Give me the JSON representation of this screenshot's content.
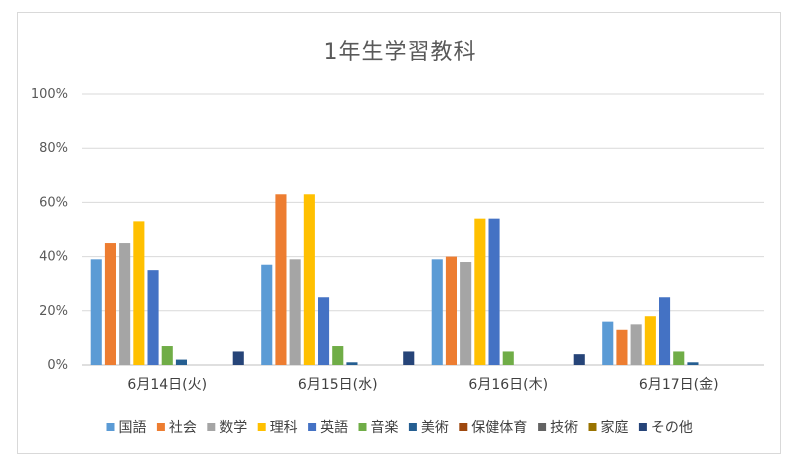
{
  "chart_data": {
    "type": "bar",
    "title": "1年生学習教科",
    "xlabel": "",
    "ylabel": "",
    "ylim": [
      0,
      100
    ],
    "yticks": [
      "0%",
      "20%",
      "40%",
      "60%",
      "80%",
      "100%"
    ],
    "grid": true,
    "legend_position": "bottom",
    "categories": [
      "6月14日(火)",
      "6月15日(水)",
      "6月16日(木)",
      "6月17日(金)"
    ],
    "series": [
      {
        "name": "国語",
        "color": "#5b9bd5",
        "values": [
          39,
          37,
          39,
          16
        ]
      },
      {
        "name": "社会",
        "color": "#ed7d31",
        "values": [
          45,
          63,
          40,
          13
        ]
      },
      {
        "name": "数学",
        "color": "#a5a5a5",
        "values": [
          45,
          39,
          38,
          15
        ]
      },
      {
        "name": "理科",
        "color": "#ffc000",
        "values": [
          53,
          63,
          54,
          18
        ]
      },
      {
        "name": "英語",
        "color": "#4472c4",
        "values": [
          35,
          25,
          54,
          25
        ]
      },
      {
        "name": "音楽",
        "color": "#70ad47",
        "values": [
          7,
          7,
          5,
          5
        ]
      },
      {
        "name": "美術",
        "color": "#255e91",
        "values": [
          2,
          1,
          0,
          1
        ]
      },
      {
        "name": "保健体育",
        "color": "#9e480e",
        "values": [
          0,
          0,
          0,
          0
        ]
      },
      {
        "name": "技術",
        "color": "#636363",
        "values": [
          0,
          0,
          0,
          0
        ]
      },
      {
        "name": "家庭",
        "color": "#997300",
        "values": [
          0,
          0,
          0,
          0
        ]
      },
      {
        "name": "その他",
        "color": "#264478",
        "values": [
          5,
          5,
          4,
          0
        ]
      }
    ]
  }
}
